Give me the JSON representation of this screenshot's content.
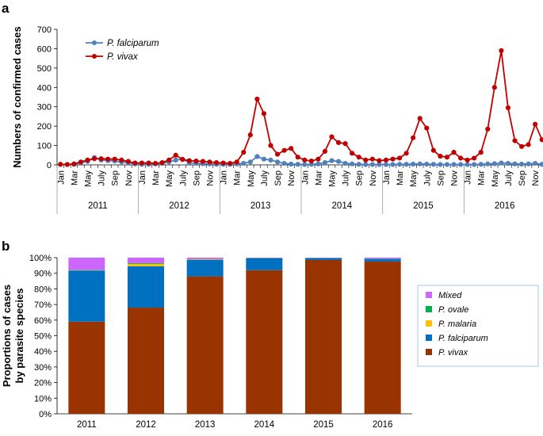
{
  "chart_data": [
    {
      "panel": "a",
      "type": "line",
      "ylabel": "Numbers of confirmed cases",
      "ylim": [
        0,
        700
      ],
      "yticks": [
        0,
        100,
        200,
        300,
        400,
        500,
        600,
        700
      ],
      "month_labels": [
        "Jan",
        "Mar",
        "May",
        "July",
        "Sep",
        "Nov"
      ],
      "years": [
        "2011",
        "2012",
        "2013",
        "2014",
        "2015",
        "2016"
      ],
      "legend_position": "top-left",
      "series": [
        {
          "name": "P. falciparum",
          "color": "#4f81bd",
          "marker": "circle",
          "values": [
            2,
            2,
            3,
            12,
            18,
            38,
            25,
            22,
            20,
            15,
            12,
            5,
            3,
            3,
            5,
            8,
            15,
            25,
            30,
            12,
            8,
            6,
            5,
            3,
            3,
            3,
            5,
            8,
            15,
            43,
            30,
            25,
            15,
            8,
            4,
            3,
            2,
            3,
            5,
            12,
            22,
            18,
            8,
            5,
            3,
            2,
            2,
            2,
            2,
            2,
            3,
            3,
            4,
            5,
            4,
            3,
            2,
            2,
            2,
            2,
            2,
            2,
            3,
            5,
            6,
            10,
            8,
            5,
            4,
            5,
            8,
            3
          ]
        },
        {
          "name": "P. vivax",
          "color": "#c00000",
          "marker": "circle",
          "values": [
            3,
            2,
            5,
            15,
            25,
            32,
            32,
            30,
            30,
            25,
            18,
            10,
            10,
            10,
            8,
            12,
            25,
            50,
            28,
            22,
            20,
            18,
            15,
            12,
            10,
            8,
            15,
            65,
            155,
            340,
            265,
            100,
            55,
            75,
            85,
            40,
            25,
            20,
            30,
            70,
            145,
            115,
            110,
            60,
            40,
            25,
            30,
            22,
            25,
            30,
            35,
            60,
            140,
            240,
            190,
            75,
            45,
            40,
            65,
            35,
            25,
            35,
            65,
            185,
            400,
            590,
            295,
            125,
            95,
            105,
            210,
            130
          ]
        }
      ]
    },
    {
      "panel": "b",
      "type": "bar",
      "stacked": true,
      "ylabel_line1": "Proportions of cases",
      "ylabel_line2": "by parasite species",
      "ylim": [
        0,
        100
      ],
      "yticks": [
        "0%",
        "10%",
        "20%",
        "30%",
        "40%",
        "50%",
        "60%",
        "70%",
        "80%",
        "90%",
        "100%"
      ],
      "categories": [
        "2011",
        "2012",
        "2013",
        "2014",
        "2015",
        "2016"
      ],
      "legend_position": "right",
      "series": [
        {
          "name": "P. vivax",
          "color": "#993300",
          "values": [
            59,
            68,
            88,
            92,
            98.5,
            97.5
          ]
        },
        {
          "name": "P. falciparum",
          "color": "#0070c0",
          "values": [
            32.5,
            26.5,
            10.5,
            7.5,
            1.2,
            1.5
          ]
        },
        {
          "name": "P. malaria",
          "color": "#ffc000",
          "values": [
            0,
            1.5,
            0.3,
            0,
            0,
            0
          ]
        },
        {
          "name": "P. ovale",
          "color": "#00b050",
          "values": [
            0.5,
            0.5,
            0.2,
            0.2,
            0.1,
            0.2
          ]
        },
        {
          "name": "Mixed",
          "color": "#cc66ff",
          "values": [
            8,
            3.5,
            1,
            0.3,
            0.2,
            0.8
          ]
        }
      ],
      "legend_order": [
        "Mixed",
        "P. ovale",
        "P. malaria",
        "P. falciparum",
        "P. vivax"
      ]
    }
  ]
}
